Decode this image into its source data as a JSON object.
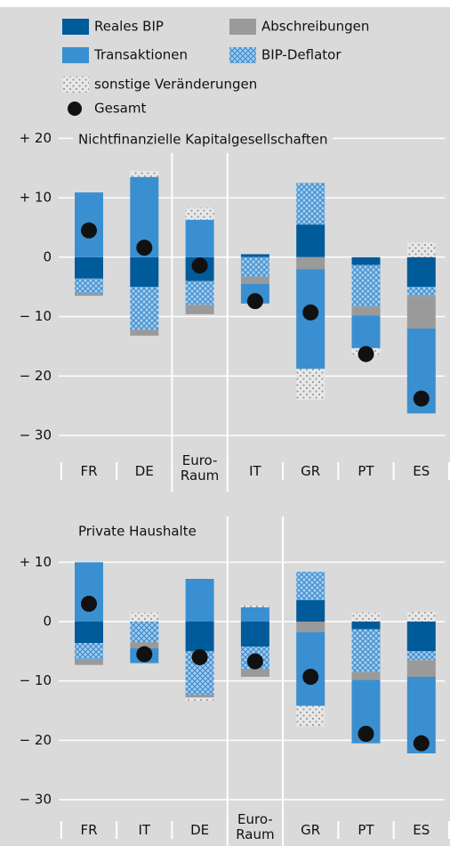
{
  "chart_data": [
    {
      "type": "stacked-bar",
      "title": "Nichtfinanzielle Kapitalgesellschaften",
      "categories": [
        "FR",
        "DE",
        "Euro-Raum",
        "IT",
        "GR",
        "PT",
        "ES"
      ],
      "series": [
        {
          "name": "Reales BIP",
          "color": "#005b9a",
          "values": [
            -3.6,
            -5.0,
            -4.0,
            0.5,
            5.5,
            -1.3,
            -5.0
          ]
        },
        {
          "name": "BIP-Deflator",
          "color": "#3b8fd0",
          "pattern": "crosshatch",
          "values": [
            -2.5,
            -7.2,
            -4.0,
            -3.3,
            7.0,
            -7.0,
            -1.5
          ]
        },
        {
          "name": "Abschreibungen",
          "color": "#9a9a9a",
          "values": [
            -0.4,
            -1.0,
            -1.6,
            -1.2,
            -2.0,
            -1.5,
            -5.5
          ]
        },
        {
          "name": "Transaktionen",
          "color": "#3a8fd0",
          "values": [
            10.9,
            13.5,
            6.3,
            -3.3,
            -16.8,
            -5.5,
            -14.3
          ]
        },
        {
          "name": "sonstige Veränderungen",
          "color": "#ffffff",
          "pattern": "dots",
          "values": [
            0,
            1.0,
            2.0,
            0,
            -5.2,
            -1.2,
            2.5
          ]
        },
        {
          "name": "Gesamt",
          "type": "dot",
          "color": "#111111",
          "values": [
            4.5,
            1.6,
            -1.4,
            -7.4,
            -9.3,
            -16.3,
            -23.8
          ]
        }
      ],
      "ylim": [
        -33,
        22
      ],
      "yticks": [
        {
          "value": 20,
          "label": "+ 20"
        },
        {
          "value": 10,
          "label": "+ 10"
        },
        0,
        {
          "value": -10,
          "label": "− 10"
        },
        {
          "value": -20,
          "label": "− 20"
        },
        {
          "value": -30,
          "label": "− 30"
        }
      ],
      "grid": true,
      "legend": "top"
    },
    {
      "type": "stacked-bar",
      "title": "Private Haushalte",
      "categories": [
        "FR",
        "IT",
        "DE",
        "Euro-Raum",
        "GR",
        "PT",
        "ES"
      ],
      "series": [
        {
          "name": "Reales BIP",
          "color": "#005b9a",
          "values": [
            -3.6,
            0,
            -5.0,
            -4.2,
            3.6,
            -1.3,
            -5.0
          ]
        },
        {
          "name": "BIP-Deflator",
          "color": "#3b8fd0",
          "pattern": "crosshatch",
          "values": [
            -2.7,
            -3.5,
            -7.3,
            -3.9,
            4.8,
            -7.2,
            -1.5
          ]
        },
        {
          "name": "Abschreibungen",
          "color": "#9a9a9a",
          "values": [
            -1.0,
            -1.0,
            -0.5,
            -1.2,
            -1.8,
            -1.3,
            -2.8
          ]
        },
        {
          "name": "Transaktionen",
          "color": "#3a8fd0",
          "values": [
            10.0,
            -2.5,
            7.2,
            2.4,
            -12.4,
            -10.7,
            -12.9
          ]
        },
        {
          "name": "sonstige Veränderungen",
          "color": "#ffffff",
          "pattern": "dots",
          "values": [
            0,
            1.5,
            -0.5,
            0.3,
            -3.4,
            1.5,
            1.6
          ]
        },
        {
          "name": "Gesamt",
          "type": "dot",
          "color": "#111111",
          "values": [
            3.0,
            -5.5,
            -6.0,
            -6.7,
            -9.3,
            -18.9,
            -20.5
          ]
        }
      ],
      "ylim": [
        -33,
        12
      ],
      "yticks": [
        {
          "value": 10,
          "label": "+ 10"
        },
        0,
        {
          "value": -10,
          "label": "− 10"
        },
        {
          "value": -20,
          "label": "− 20"
        },
        {
          "value": -30,
          "label": "− 30"
        }
      ],
      "grid": true
    }
  ]
}
